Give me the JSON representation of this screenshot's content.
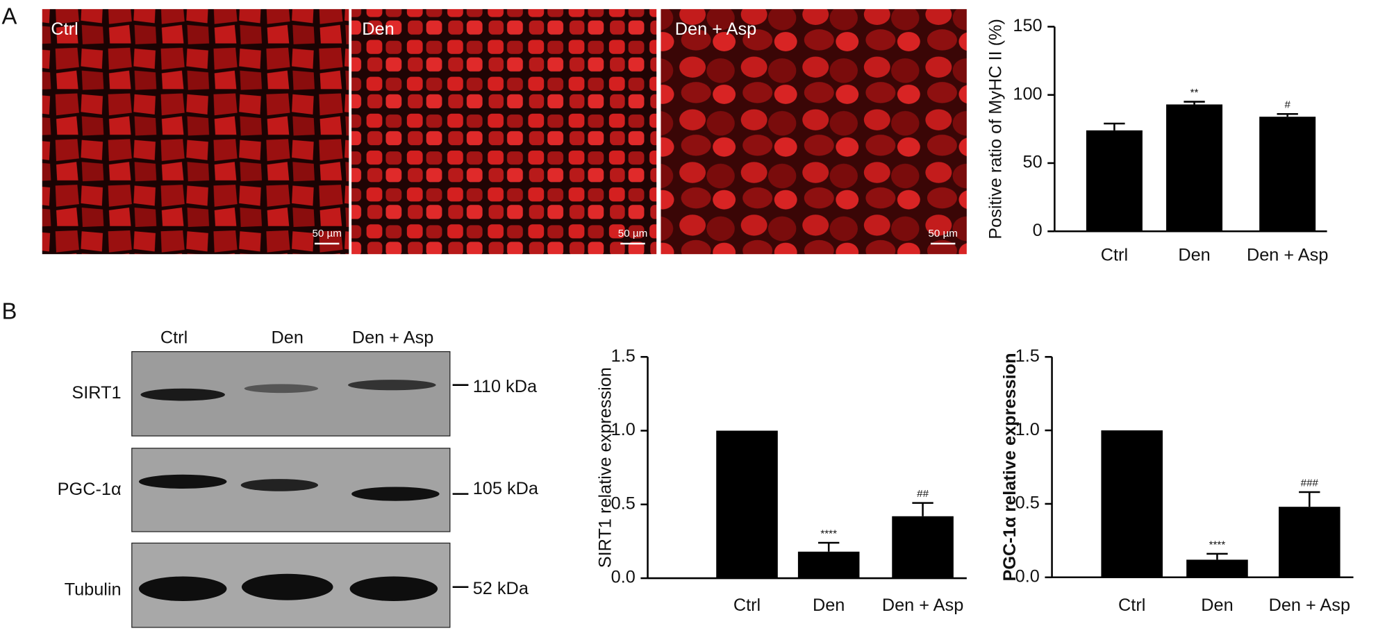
{
  "panel_labels": [
    "A",
    "B"
  ],
  "micrographs": [
    {
      "label": "Ctrl",
      "scale_bar": "50 µm"
    },
    {
      "label": "Den",
      "scale_bar": "50 µm"
    },
    {
      "label": "Den + Asp",
      "scale_bar": "50 µm"
    }
  ],
  "blot": {
    "lanes": [
      "Ctrl",
      "Den",
      "Den + Asp"
    ],
    "rows": [
      {
        "protein": "SIRT1",
        "size": "110 kDa"
      },
      {
        "protein": "PGC-1α",
        "size": "105 kDa"
      },
      {
        "protein": "Tubulin",
        "size": "52 kDa"
      }
    ]
  },
  "chart_data": [
    {
      "type": "bar",
      "ylabel": "Positive ratio of MyHC II (%)",
      "categories": [
        "Ctrl",
        "Den",
        "Den + Asp"
      ],
      "values": [
        74,
        93,
        84
      ],
      "errors": [
        5,
        2,
        2
      ],
      "annotations": [
        null,
        "**",
        "#"
      ],
      "color": "#000000",
      "ylim": [
        0,
        150
      ],
      "yticks": [
        0,
        50,
        100,
        150
      ]
    },
    {
      "type": "bar",
      "ylabel": "SIRT1 relative expression",
      "categories": [
        "Ctrl",
        "Den",
        "Den + Asp"
      ],
      "values": [
        1,
        0.18,
        0.42
      ],
      "errors": [
        null,
        0.06,
        0.09
      ],
      "annotations": [
        null,
        "****",
        "##"
      ],
      "color": "#000000",
      "ylim": [
        0,
        1.5
      ],
      "yticks": [
        {
          "value": 0,
          "label": "0.0"
        },
        0.5,
        {
          "value": 1,
          "label": "1.0"
        },
        1.5
      ]
    },
    {
      "type": "bar",
      "ylabel": "PGC-1α relative expression",
      "categories": [
        "Ctrl",
        "Den",
        "Den + Asp"
      ],
      "values": [
        1,
        0.12,
        0.48
      ],
      "errors": [
        null,
        0.04,
        0.1
      ],
      "annotations": [
        null,
        "****",
        "###"
      ],
      "color": "#000000",
      "ylim": [
        0,
        1.5
      ],
      "yticks": [
        {
          "value": 0,
          "label": "0.0"
        },
        0.5,
        {
          "value": 1,
          "label": "1.0"
        },
        1.5
      ]
    }
  ]
}
